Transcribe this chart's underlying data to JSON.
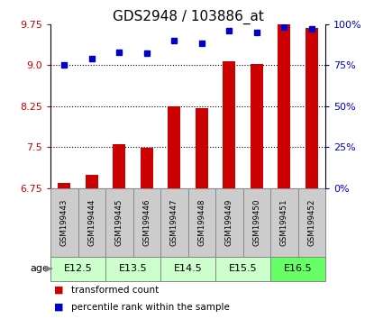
{
  "title": "GDS2948 / 103886_at",
  "samples": [
    "GSM199443",
    "GSM199444",
    "GSM199445",
    "GSM199446",
    "GSM199447",
    "GSM199448",
    "GSM199449",
    "GSM199450",
    "GSM199451",
    "GSM199452"
  ],
  "red_values": [
    6.85,
    7.0,
    7.55,
    7.48,
    8.25,
    8.22,
    9.07,
    9.02,
    9.75,
    9.68
  ],
  "blue_values": [
    75,
    79,
    83,
    82,
    90,
    88,
    96,
    95,
    98,
    97
  ],
  "ylim_left": [
    6.75,
    9.75
  ],
  "ylim_right": [
    0,
    100
  ],
  "yticks_left": [
    6.75,
    7.5,
    8.25,
    9.0,
    9.75
  ],
  "yticks_right": [
    0,
    25,
    50,
    75,
    100
  ],
  "ytick_labels_right": [
    "0%",
    "25%",
    "50%",
    "75%",
    "100%"
  ],
  "hlines": [
    7.5,
    8.25,
    9.0
  ],
  "bar_color": "#cc0000",
  "dot_color": "#0000cc",
  "bar_width": 0.45,
  "legend_items": [
    {
      "color": "#cc0000",
      "label": "transformed count"
    },
    {
      "color": "#0000cc",
      "label": "percentile rank within the sample"
    }
  ],
  "left_tick_color": "#cc0000",
  "right_tick_color": "#0000cc",
  "title_fontsize": 11,
  "tick_fontsize": 8,
  "sample_bg_color": "#cccccc",
  "sample_border_color": "#888888",
  "age_colors": [
    "#ccffcc",
    "#ccffcc",
    "#ccffcc",
    "#ccffcc",
    "#66ff66"
  ],
  "age_labels": [
    "E12.5",
    "E13.5",
    "E14.5",
    "E15.5",
    "E16.5"
  ]
}
